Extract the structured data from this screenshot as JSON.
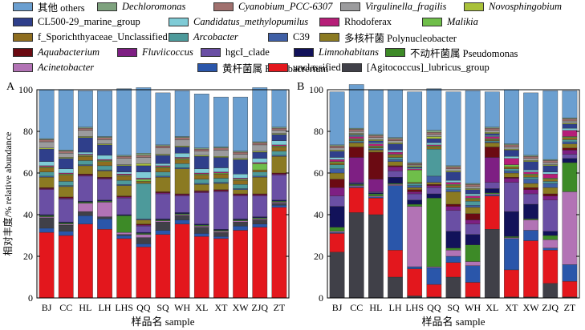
{
  "chart_data": [
    {
      "type": "bar",
      "stacked": true,
      "panel_label": "A",
      "title": "",
      "xlabel": "样品名 sample",
      "ylabel": "相对丰度/% relative abundance",
      "ylim": [
        0,
        100
      ],
      "yticks": [
        0,
        20,
        40,
        60,
        80,
        100
      ],
      "categories": [
        "BJ",
        "CC",
        "HL",
        "LH",
        "LHS",
        "QQ",
        "SQ",
        "WH",
        "XL",
        "XT",
        "XW",
        "ZJQ",
        "ZT"
      ],
      "series": [
        {
          "name": "unclassified",
          "values": [
            31.5,
            30,
            35.5,
            33,
            28.5,
            24.5,
            30.5,
            35.5,
            29.5,
            28.5,
            32.5,
            34,
            43.5
          ]
        },
        {
          "name": "黄杆菌属 Flavobacrerium",
          "values": [
            2,
            2,
            4,
            5,
            1.5,
            1.5,
            2,
            2,
            1.5,
            1,
            2,
            1.5,
            1
          ]
        },
        {
          "name": "[Agitococcus]_lubricus_group",
          "values": [
            5,
            3,
            2,
            1,
            0.5,
            3,
            4,
            2,
            3,
            2,
            2,
            2,
            1
          ]
        },
        {
          "name": "Acinetobacter",
          "values": [
            0.5,
            0.5,
            4,
            7,
            1,
            1.5,
            0.5,
            0.5,
            0.5,
            0.5,
            0.5,
            0.5,
            0.5
          ]
        },
        {
          "name": "不动杆菌属 Pseudomonas",
          "values": [
            0.5,
            0.5,
            0.5,
            0.5,
            8,
            0.5,
            0.5,
            0.5,
            0.5,
            0.5,
            0.5,
            0.5,
            0.5
          ]
        },
        {
          "name": "Limnohabitans",
          "values": [
            0.5,
            0.5,
            0.5,
            0.5,
            0.5,
            0.5,
            0.5,
            0.5,
            0.5,
            0.5,
            0.5,
            0.5,
            0.5
          ]
        },
        {
          "name": "hgcI_clade",
          "values": [
            12,
            11,
            12,
            10,
            8,
            3,
            12,
            8,
            15,
            18,
            11,
            10,
            12
          ]
        },
        {
          "name": "Fluviicoccus",
          "values": [
            0.5,
            0.5,
            0.5,
            0.5,
            0.5,
            0.5,
            0.5,
            0.5,
            0.5,
            0.5,
            0.5,
            0.5,
            0.5
          ]
        },
        {
          "name": "Aquabacterium",
          "values": [
            0.5,
            0.5,
            0.5,
            0.5,
            0.5,
            0.5,
            0.5,
            0.5,
            0.5,
            0.5,
            0.5,
            0.5,
            0.5
          ]
        },
        {
          "name": "多核杆菌 Polynucleobacter",
          "values": [
            5,
            5,
            4,
            3,
            5,
            2,
            7,
            12,
            3,
            3,
            2,
            8,
            8
          ]
        },
        {
          "name": "C39",
          "values": [
            0.5,
            0.5,
            0.5,
            0.5,
            0.5,
            0.5,
            0.5,
            0.5,
            0.5,
            0.5,
            0.5,
            0.5,
            0.5
          ]
        },
        {
          "name": "Arcobacter",
          "values": [
            2,
            2,
            2,
            2,
            2,
            17,
            2,
            2,
            2,
            2,
            2,
            2,
            2
          ]
        },
        {
          "name": "f_Sporichthyaceae_Unclassified",
          "values": [
            2,
            3,
            2,
            2,
            2,
            1,
            2,
            2,
            2,
            2,
            2,
            1,
            2
          ]
        },
        {
          "name": "Malikia",
          "values": [
            0.5,
            0.5,
            0.5,
            0.5,
            0.5,
            1,
            0.5,
            0.5,
            0.5,
            0.5,
            0.5,
            3,
            0.5
          ]
        },
        {
          "name": "Rhodoferax",
          "values": [
            0.5,
            0.5,
            0.5,
            0.5,
            0.5,
            0.5,
            0.5,
            0.5,
            0.5,
            0.5,
            0.5,
            0.5,
            0.5
          ]
        },
        {
          "name": "Candidatus_methylopumilus",
          "values": [
            2,
            2,
            1,
            2,
            1,
            3,
            1,
            2,
            2,
            2,
            2,
            2,
            2
          ]
        },
        {
          "name": "CL500-29_marine_group",
          "values": [
            6,
            5,
            7,
            5,
            3,
            3,
            4,
            3,
            6,
            5,
            7,
            3,
            3
          ]
        },
        {
          "name": "Novosphingobium",
          "values": [
            0.5,
            0.5,
            0.5,
            0.5,
            0.5,
            1,
            0.5,
            0.5,
            0.5,
            0.5,
            0.5,
            0.5,
            0.5
          ]
        },
        {
          "name": "Virgulinella_fragilis",
          "values": [
            3,
            2,
            3,
            2,
            3,
            3,
            3,
            3,
            2,
            3,
            2,
            3,
            1.5
          ]
        },
        {
          "name": "Cyanobium_PCC-6307",
          "values": [
            1,
            1,
            1,
            1,
            1,
            1,
            1,
            1,
            1,
            1,
            1,
            1,
            1
          ]
        },
        {
          "name": "Dechloromonas",
          "values": [
            0.5,
            0.5,
            0.5,
            0.5,
            0.5,
            1,
            0.5,
            0.5,
            0.5,
            0.5,
            0.5,
            0.5,
            0.5
          ]
        },
        {
          "name": "其他 others",
          "values": [
            23.5,
            29,
            17.5,
            22,
            32,
            31.5,
            25,
            22,
            26,
            24,
            26,
            26,
            18
          ]
        }
      ]
    },
    {
      "type": "bar",
      "stacked": true,
      "panel_label": "B",
      "title": "",
      "xlabel": "样品名 sample",
      "ylabel": "",
      "ylim": [
        0,
        100
      ],
      "yticks": [
        0,
        20,
        40,
        60,
        80,
        100
      ],
      "categories": [
        "BJ",
        "CC",
        "HL",
        "LH",
        "LHS",
        "QQ",
        "SQ",
        "WH",
        "XL",
        "XT",
        "XW",
        "ZJQ",
        "ZT"
      ],
      "series": [
        {
          "name": "[Agitococcus]_lubricus_group",
          "values": [
            22,
            41,
            40,
            10,
            1,
            0.5,
            10,
            0.5,
            33,
            0.5,
            0.5,
            7,
            0.5
          ]
        },
        {
          "name": "unclassified",
          "values": [
            9,
            12,
            8,
            13,
            13,
            6,
            7,
            7,
            16,
            13,
            27,
            16,
            7.5
          ]
        },
        {
          "name": "黄杆菌属 Flavobacrerium",
          "values": [
            0.5,
            0.5,
            0.5,
            31,
            1,
            8,
            3,
            8,
            0.5,
            15,
            5,
            1,
            8
          ]
        },
        {
          "name": "Acinetobacter",
          "values": [
            0.5,
            0.5,
            0.5,
            0.5,
            29,
            0.5,
            3,
            2,
            0.5,
            0.5,
            5,
            4,
            35
          ]
        },
        {
          "name": "不动杆菌属 Pseudomonas",
          "values": [
            2,
            0.5,
            1,
            0.5,
            1,
            33,
            1,
            8,
            0.5,
            0.5,
            0.5,
            2,
            14
          ]
        },
        {
          "name": "Limnohabitans",
          "values": [
            10,
            0.5,
            0.5,
            3,
            2,
            2,
            8,
            5,
            2,
            12,
            7,
            2,
            2
          ]
        },
        {
          "name": "hgcI_clade",
          "values": [
            5,
            0.5,
            0.5,
            3,
            3,
            3,
            10,
            5,
            3,
            14,
            5,
            15,
            2
          ]
        },
        {
          "name": "Fluviicoccus",
          "values": [
            4,
            12,
            6,
            2,
            1,
            1,
            2,
            2,
            12,
            2,
            2,
            2,
            2
          ]
        },
        {
          "name": "Aquabacterium",
          "values": [
            4,
            5,
            13,
            0.5,
            1,
            0.5,
            1,
            3,
            5,
            0.5,
            1,
            1,
            1
          ]
        },
        {
          "name": "多核杆菌 Polynucleobacter",
          "values": [
            3,
            2,
            1,
            2,
            1,
            1,
            6,
            3,
            2,
            2,
            2,
            3,
            2
          ]
        },
        {
          "name": "C39",
          "values": [
            2,
            0.5,
            0.5,
            1,
            1,
            3,
            1,
            1,
            0.5,
            1,
            2,
            2,
            1
          ]
        },
        {
          "name": "Arcobacter",
          "values": [
            2,
            0.5,
            0.5,
            1,
            1,
            13,
            1,
            2,
            0.5,
            1,
            1,
            1,
            1
          ]
        },
        {
          "name": "f_Sporichthyaceae_Unclassified",
          "values": [
            1,
            0.5,
            0.5,
            1,
            0.5,
            1,
            1,
            1,
            0.5,
            1,
            1,
            1,
            1
          ]
        },
        {
          "name": "Malikia",
          "values": [
            0.5,
            0.5,
            0.5,
            0.5,
            6,
            0.5,
            0.5,
            0.5,
            0.5,
            1,
            0.5,
            0.5,
            0.5
          ]
        },
        {
          "name": "Rhodoferax",
          "values": [
            1,
            1,
            1,
            1,
            0.5,
            0.5,
            1,
            1,
            1,
            3,
            1,
            2,
            3
          ]
        },
        {
          "name": "Candidatus_methylopumilus",
          "values": [
            1,
            0.5,
            0.5,
            1,
            0.5,
            1,
            1,
            1,
            0.5,
            1,
            1,
            1,
            1
          ]
        },
        {
          "name": "CL500-29_marine_group",
          "values": [
            3,
            0.5,
            1,
            3,
            0.5,
            2,
            4,
            2,
            1,
            3,
            4,
            3,
            2
          ]
        },
        {
          "name": "Novosphingobium",
          "values": [
            0.5,
            0.5,
            0.5,
            0.5,
            0.5,
            1,
            0.5,
            0.5,
            0.5,
            0.5,
            0.5,
            0.5,
            0.5
          ]
        },
        {
          "name": "Virgulinella_fragilis",
          "values": [
            1,
            1,
            1,
            1,
            0.5,
            1,
            1,
            1,
            1,
            1,
            1,
            1,
            1
          ]
        },
        {
          "name": "Cyanobium_PCC-6307",
          "values": [
            1,
            1,
            1,
            1,
            0.5,
            1,
            1,
            1,
            1,
            1,
            1,
            1,
            1
          ]
        },
        {
          "name": "Dechloromonas",
          "values": [
            0.5,
            0.5,
            0.5,
            0.5,
            0.5,
            1,
            0.5,
            0.5,
            0.5,
            0.5,
            0.5,
            0.5,
            0.5
          ]
        },
        {
          "name": "其他 others",
          "values": [
            25.5,
            21,
            21.5,
            23,
            34,
            20,
            35.5,
            44.5,
            17,
            26,
            30,
            33,
            13
          ]
        }
      ]
    }
  ],
  "legend": [
    {
      "name": "其他 others",
      "color": "#6b9fd0",
      "italic": false
    },
    {
      "name": "Dechloromonas",
      "color": "#7ea27e",
      "italic": true
    },
    {
      "name": "Cyanobium_PCC-6307",
      "color": "#a0706e",
      "italic": true
    },
    {
      "name": "Virgulinella_fragilis",
      "color": "#9b9b9d",
      "italic": true
    },
    {
      "name": "Novosphingobium",
      "color": "#a9c13a",
      "italic": true
    },
    {
      "name": "CL500-29_marine_group",
      "color": "#2f3f8b",
      "italic": false
    },
    {
      "name": "Candidatus_methylopumilus",
      "color": "#7fcbd6",
      "italic": true
    },
    {
      "name": "Rhodoferax",
      "color": "#b61e78",
      "italic": false
    },
    {
      "name": "Malikia",
      "color": "#6fbe4a",
      "italic": true
    },
    {
      "name": "f_Sporichthyaceae_Unclassified",
      "color": "#8e6d1f",
      "italic": false
    },
    {
      "name": "Arcobacter",
      "color": "#4d9a9b",
      "italic": true
    },
    {
      "name": "C39",
      "color": "#3f5fa5",
      "italic": false
    },
    {
      "name": "多核杆菌 Polynucleobacter",
      "color": "#8b7a22",
      "italic": false
    },
    {
      "name": "Aquabacterium",
      "color": "#6b0a12",
      "italic": true
    },
    {
      "name": "Fluviicoccus",
      "color": "#7e1f83",
      "italic": true
    },
    {
      "name": "hgcI_clade",
      "color": "#6a4fa4",
      "italic": false
    },
    {
      "name": "Limnohabitans",
      "color": "#12125a",
      "italic": true
    },
    {
      "name": "不动杆菌属 Pseudomonas",
      "color": "#3d8a27",
      "italic": false
    },
    {
      "name": "Acinetobacter",
      "color": "#b273b5",
      "italic": true
    },
    {
      "name": "黄杆菌属 Flavobacrerium",
      "color": "#2a56aa",
      "italic": false
    },
    {
      "name": "unclassified",
      "color": "#e3171d",
      "italic": false
    },
    {
      "name": "[Agitococcus]_lubricus_group",
      "color": "#404048",
      "italic": false
    }
  ]
}
